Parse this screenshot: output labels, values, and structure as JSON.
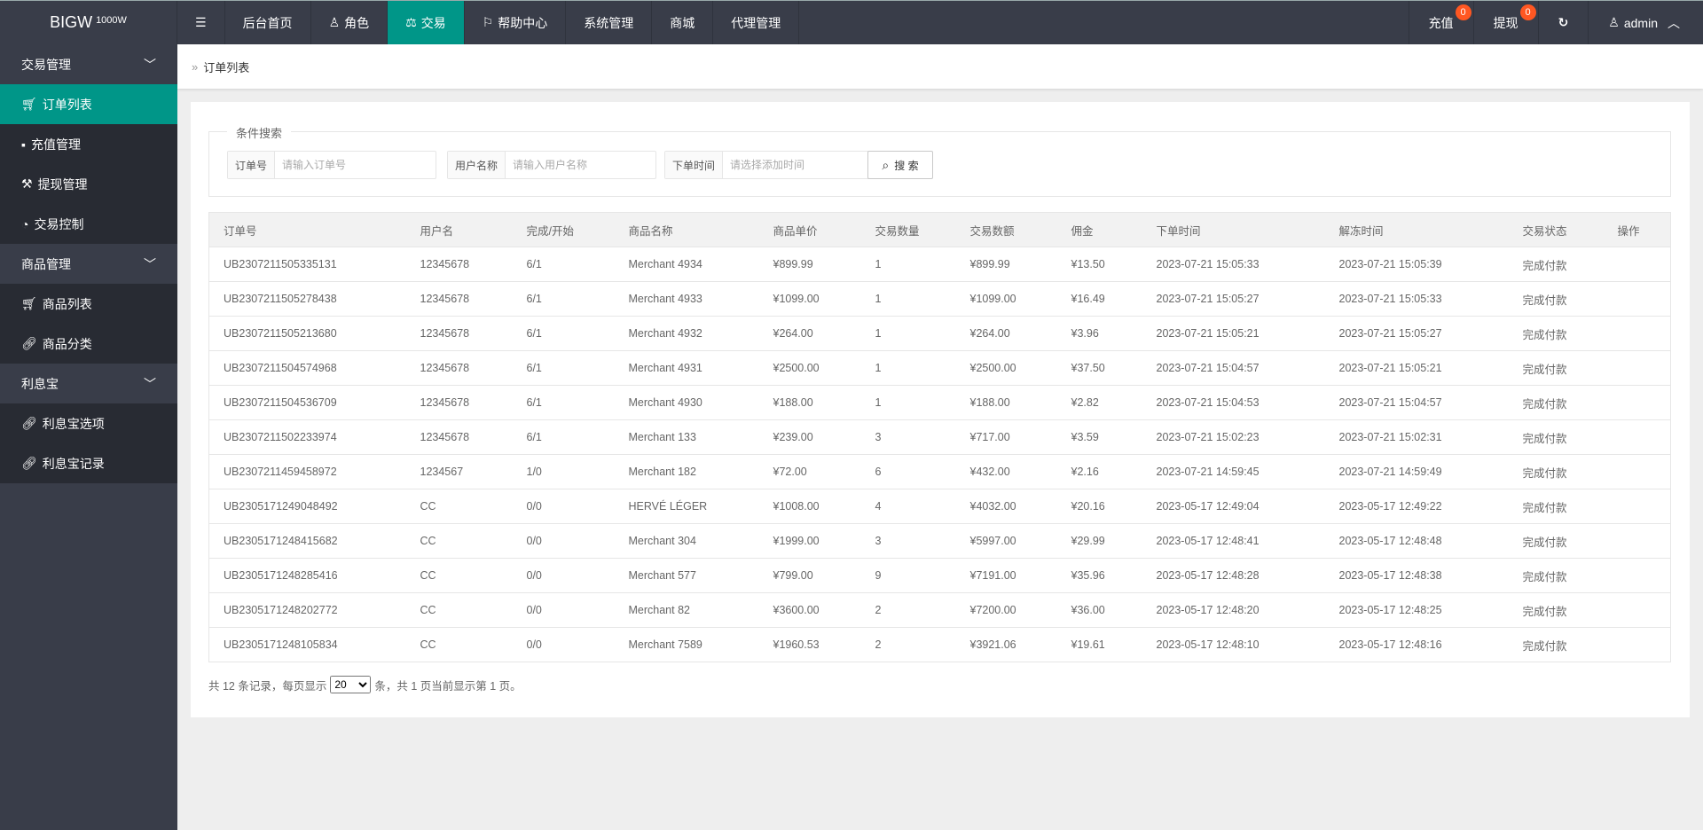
{
  "logo": {
    "text": "BIGW",
    "sup": "1000W"
  },
  "nav": {
    "items": [
      {
        "label": "",
        "icon": "menu-toggle-icon"
      },
      {
        "label": "后台首页"
      },
      {
        "label": "角色",
        "icon": "user-icon"
      },
      {
        "label": "交易",
        "icon": "scale-icon",
        "active": true
      },
      {
        "label": "帮助中心",
        "icon": "flag-icon"
      },
      {
        "label": "系统管理"
      },
      {
        "label": "商城"
      },
      {
        "label": "代理管理"
      }
    ]
  },
  "topright": {
    "recharge": "充值",
    "recharge_badge": "0",
    "withdraw": "提现",
    "withdraw_badge": "0",
    "user": "admin"
  },
  "sidebar": {
    "groups": [
      {
        "label": "交易管理",
        "items": [
          {
            "label": "订单列表",
            "active": true
          },
          {
            "label": "充值管理"
          },
          {
            "label": "提现管理"
          },
          {
            "label": "交易控制"
          }
        ]
      },
      {
        "label": "商品管理",
        "items": [
          {
            "label": "商品列表"
          },
          {
            "label": "商品分类"
          }
        ]
      },
      {
        "label": "利息宝",
        "items": [
          {
            "label": "利息宝选项"
          },
          {
            "label": "利息宝记录"
          }
        ]
      }
    ]
  },
  "breadcrumb": "订单列表",
  "search": {
    "legend": "条件搜索",
    "order_label": "订单号",
    "order_placeholder": "请输入订单号",
    "user_label": "用户名称",
    "user_placeholder": "请输入用户名称",
    "time_label": "下单时间",
    "time_placeholder": "请选择添加时间",
    "button": "搜 索"
  },
  "table": {
    "headers": [
      "订单号",
      "用户名",
      "完成/开始",
      "商品名称",
      "商品单价",
      "交易数量",
      "交易数额",
      "佣金",
      "下单时间",
      "解冻时间",
      "交易状态",
      "操作"
    ],
    "rows": [
      [
        "UB2307211505335131",
        "12345678",
        "6/1",
        "Merchant 4934",
        "¥899.99",
        "1",
        "¥899.99",
        "¥13.50",
        "2023-07-21 15:05:33",
        "2023-07-21 15:05:39",
        "完成付款",
        ""
      ],
      [
        "UB2307211505278438",
        "12345678",
        "6/1",
        "Merchant 4933",
        "¥1099.00",
        "1",
        "¥1099.00",
        "¥16.49",
        "2023-07-21 15:05:27",
        "2023-07-21 15:05:33",
        "完成付款",
        ""
      ],
      [
        "UB2307211505213680",
        "12345678",
        "6/1",
        "Merchant 4932",
        "¥264.00",
        "1",
        "¥264.00",
        "¥3.96",
        "2023-07-21 15:05:21",
        "2023-07-21 15:05:27",
        "完成付款",
        ""
      ],
      [
        "UB2307211504574968",
        "12345678",
        "6/1",
        "Merchant 4931",
        "¥2500.00",
        "1",
        "¥2500.00",
        "¥37.50",
        "2023-07-21 15:04:57",
        "2023-07-21 15:05:21",
        "完成付款",
        ""
      ],
      [
        "UB2307211504536709",
        "12345678",
        "6/1",
        "Merchant 4930",
        "¥188.00",
        "1",
        "¥188.00",
        "¥2.82",
        "2023-07-21 15:04:53",
        "2023-07-21 15:04:57",
        "完成付款",
        ""
      ],
      [
        "UB2307211502233974",
        "12345678",
        "6/1",
        "Merchant 133",
        "¥239.00",
        "3",
        "¥717.00",
        "¥3.59",
        "2023-07-21 15:02:23",
        "2023-07-21 15:02:31",
        "完成付款",
        ""
      ],
      [
        "UB2307211459458972",
        "1234567",
        "1/0",
        "Merchant 182",
        "¥72.00",
        "6",
        "¥432.00",
        "¥2.16",
        "2023-07-21 14:59:45",
        "2023-07-21 14:59:49",
        "完成付款",
        ""
      ],
      [
        "UB2305171249048492",
        "CC",
        "0/0",
        "HERVÉ LÉGER",
        "¥1008.00",
        "4",
        "¥4032.00",
        "¥20.16",
        "2023-05-17 12:49:04",
        "2023-05-17 12:49:22",
        "完成付款",
        ""
      ],
      [
        "UB2305171248415682",
        "CC",
        "0/0",
        "Merchant 304",
        "¥1999.00",
        "3",
        "¥5997.00",
        "¥29.99",
        "2023-05-17 12:48:41",
        "2023-05-17 12:48:48",
        "完成付款",
        ""
      ],
      [
        "UB2305171248285416",
        "CC",
        "0/0",
        "Merchant 577",
        "¥799.00",
        "9",
        "¥7191.00",
        "¥35.96",
        "2023-05-17 12:48:28",
        "2023-05-17 12:48:38",
        "完成付款",
        ""
      ],
      [
        "UB2305171248202772",
        "CC",
        "0/0",
        "Merchant 82",
        "¥3600.00",
        "2",
        "¥7200.00",
        "¥36.00",
        "2023-05-17 12:48:20",
        "2023-05-17 12:48:25",
        "完成付款",
        ""
      ],
      [
        "UB2305171248105834",
        "CC",
        "0/0",
        "Merchant 7589",
        "¥1960.53",
        "2",
        "¥3921.06",
        "¥19.61",
        "2023-05-17 12:48:10",
        "2023-05-17 12:48:16",
        "完成付款",
        ""
      ]
    ]
  },
  "pager": {
    "prefix": "共 12 条记录，每页显示",
    "page_size": "20",
    "suffix": "条，共 1 页当前显示第 1 页。"
  },
  "colors": {
    "topbar": "#393d49",
    "sidebar": "#282b33",
    "accent": "#009688",
    "badge": "#ff5722"
  }
}
